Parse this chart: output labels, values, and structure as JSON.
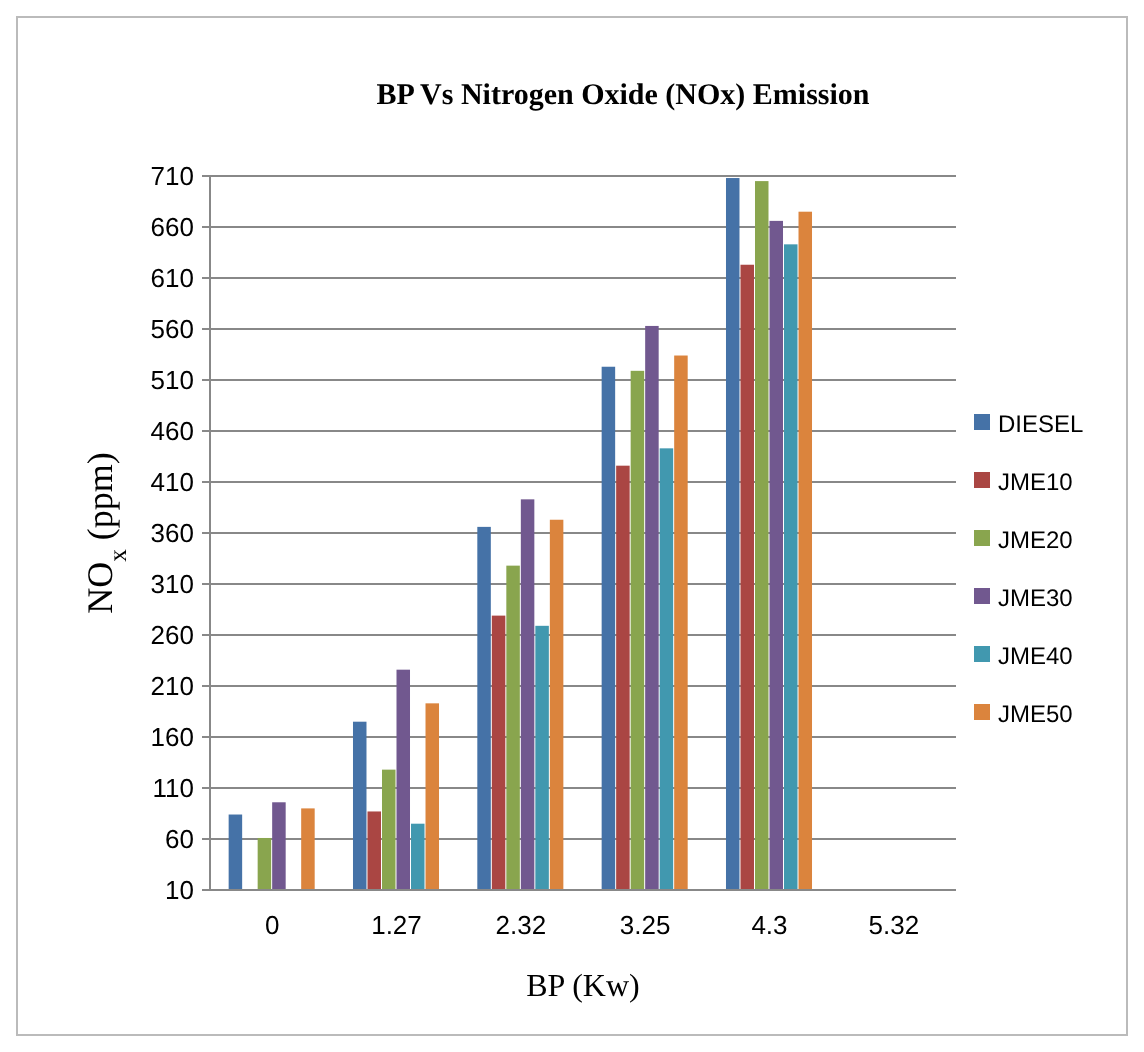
{
  "chart_data": {
    "type": "bar",
    "title": "BP Vs Nitrogen Oxide (NOx) Emission",
    "xlabel": "BP (Kw)",
    "ylabel": "NO$_{x}$  (ppm)",
    "categories": [
      "0",
      "1.27",
      "2.32",
      "3.25",
      "4.3",
      "5.32"
    ],
    "series": [
      {
        "name": "DIESEL",
        "color": "#4572a7",
        "values": [
          84,
          175,
          366,
          523,
          708,
          null
        ]
      },
      {
        "name": "JME10",
        "color": "#aa4643",
        "values": [
          null,
          87,
          279,
          426,
          623,
          null
        ]
      },
      {
        "name": "JME20",
        "color": "#89a54e",
        "values": [
          61,
          128,
          328,
          519,
          705,
          null
        ]
      },
      {
        "name": "JME30",
        "color": "#71588f",
        "values": [
          96,
          226,
          393,
          563,
          666,
          null
        ]
      },
      {
        "name": "JME40",
        "color": "#4198af",
        "values": [
          null,
          75,
          269,
          443,
          643,
          null
        ]
      },
      {
        "name": "JME50",
        "color": "#db843d",
        "values": [
          90,
          193,
          373,
          534,
          675,
          null
        ]
      }
    ],
    "ylim": [
      10,
      710
    ],
    "yticks": [
      10,
      60,
      110,
      160,
      210,
      260,
      310,
      360,
      410,
      460,
      510,
      560,
      610,
      660,
      710
    ],
    "grid": "y",
    "legend": "right"
  }
}
